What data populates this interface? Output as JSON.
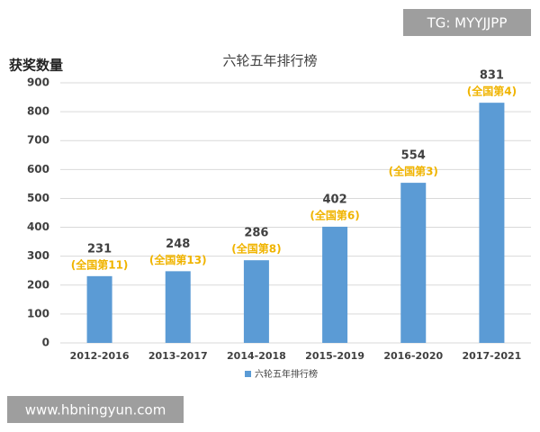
{
  "chart_data": {
    "type": "bar",
    "title": "六轮五年排行榜",
    "y_label": "获奖数量",
    "categories": [
      "2012-2016",
      "2013-2017",
      "2014-2018",
      "2015-2019",
      "2016-2020",
      "2017-2021"
    ],
    "series": [
      {
        "name": "六轮五年排行榜",
        "color": "#5b9bd5",
        "values": [
          231,
          248,
          286,
          402,
          554,
          831
        ]
      }
    ],
    "annotations": [
      "(全国第11)",
      "(全国第13)",
      "(全国第8)",
      "(全国第6)",
      "(全国第3)",
      "(全国第4)"
    ],
    "ylim": [
      0,
      900
    ],
    "yticks": [
      0,
      100,
      200,
      300,
      400,
      500,
      600,
      700,
      800,
      900
    ],
    "grid": true,
    "legend": "bottom"
  },
  "watermarks": [
    "TG: MYYJJPP",
    "www.hbningyun.com"
  ]
}
